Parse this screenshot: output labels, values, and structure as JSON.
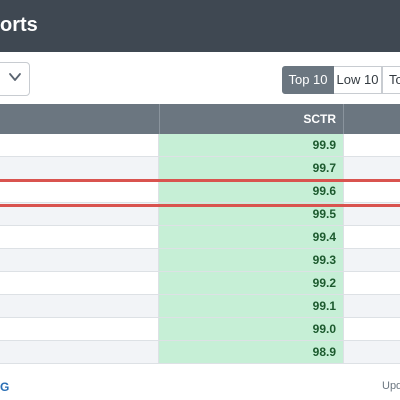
{
  "header": {
    "title": "orts"
  },
  "controls": {
    "select_icon": "chevron-down-icon",
    "tabs": [
      {
        "label": "Top 10",
        "active": true
      },
      {
        "label": "Low 10",
        "active": false
      },
      {
        "label": "To",
        "active": false
      }
    ]
  },
  "table": {
    "column_header": "SCTR",
    "rows": [
      {
        "sctr": "99.9"
      },
      {
        "sctr": "99.7"
      },
      {
        "sctr": "99.6",
        "highlighted": true
      },
      {
        "sctr": "99.5"
      },
      {
        "sctr": "99.4"
      },
      {
        "sctr": "99.3"
      },
      {
        "sctr": "99.2"
      },
      {
        "sctr": "99.1"
      },
      {
        "sctr": "99.0"
      },
      {
        "sctr": "98.9"
      }
    ]
  },
  "footer": {
    "left_text": "G",
    "right_text": "Upd"
  },
  "colors": {
    "header_bg": "#3f4852",
    "table_header_bg": "#6b7680",
    "sctr_cell_bg": "#c6efd6",
    "highlight": "#d9534f",
    "link": "#2a6fb5"
  }
}
